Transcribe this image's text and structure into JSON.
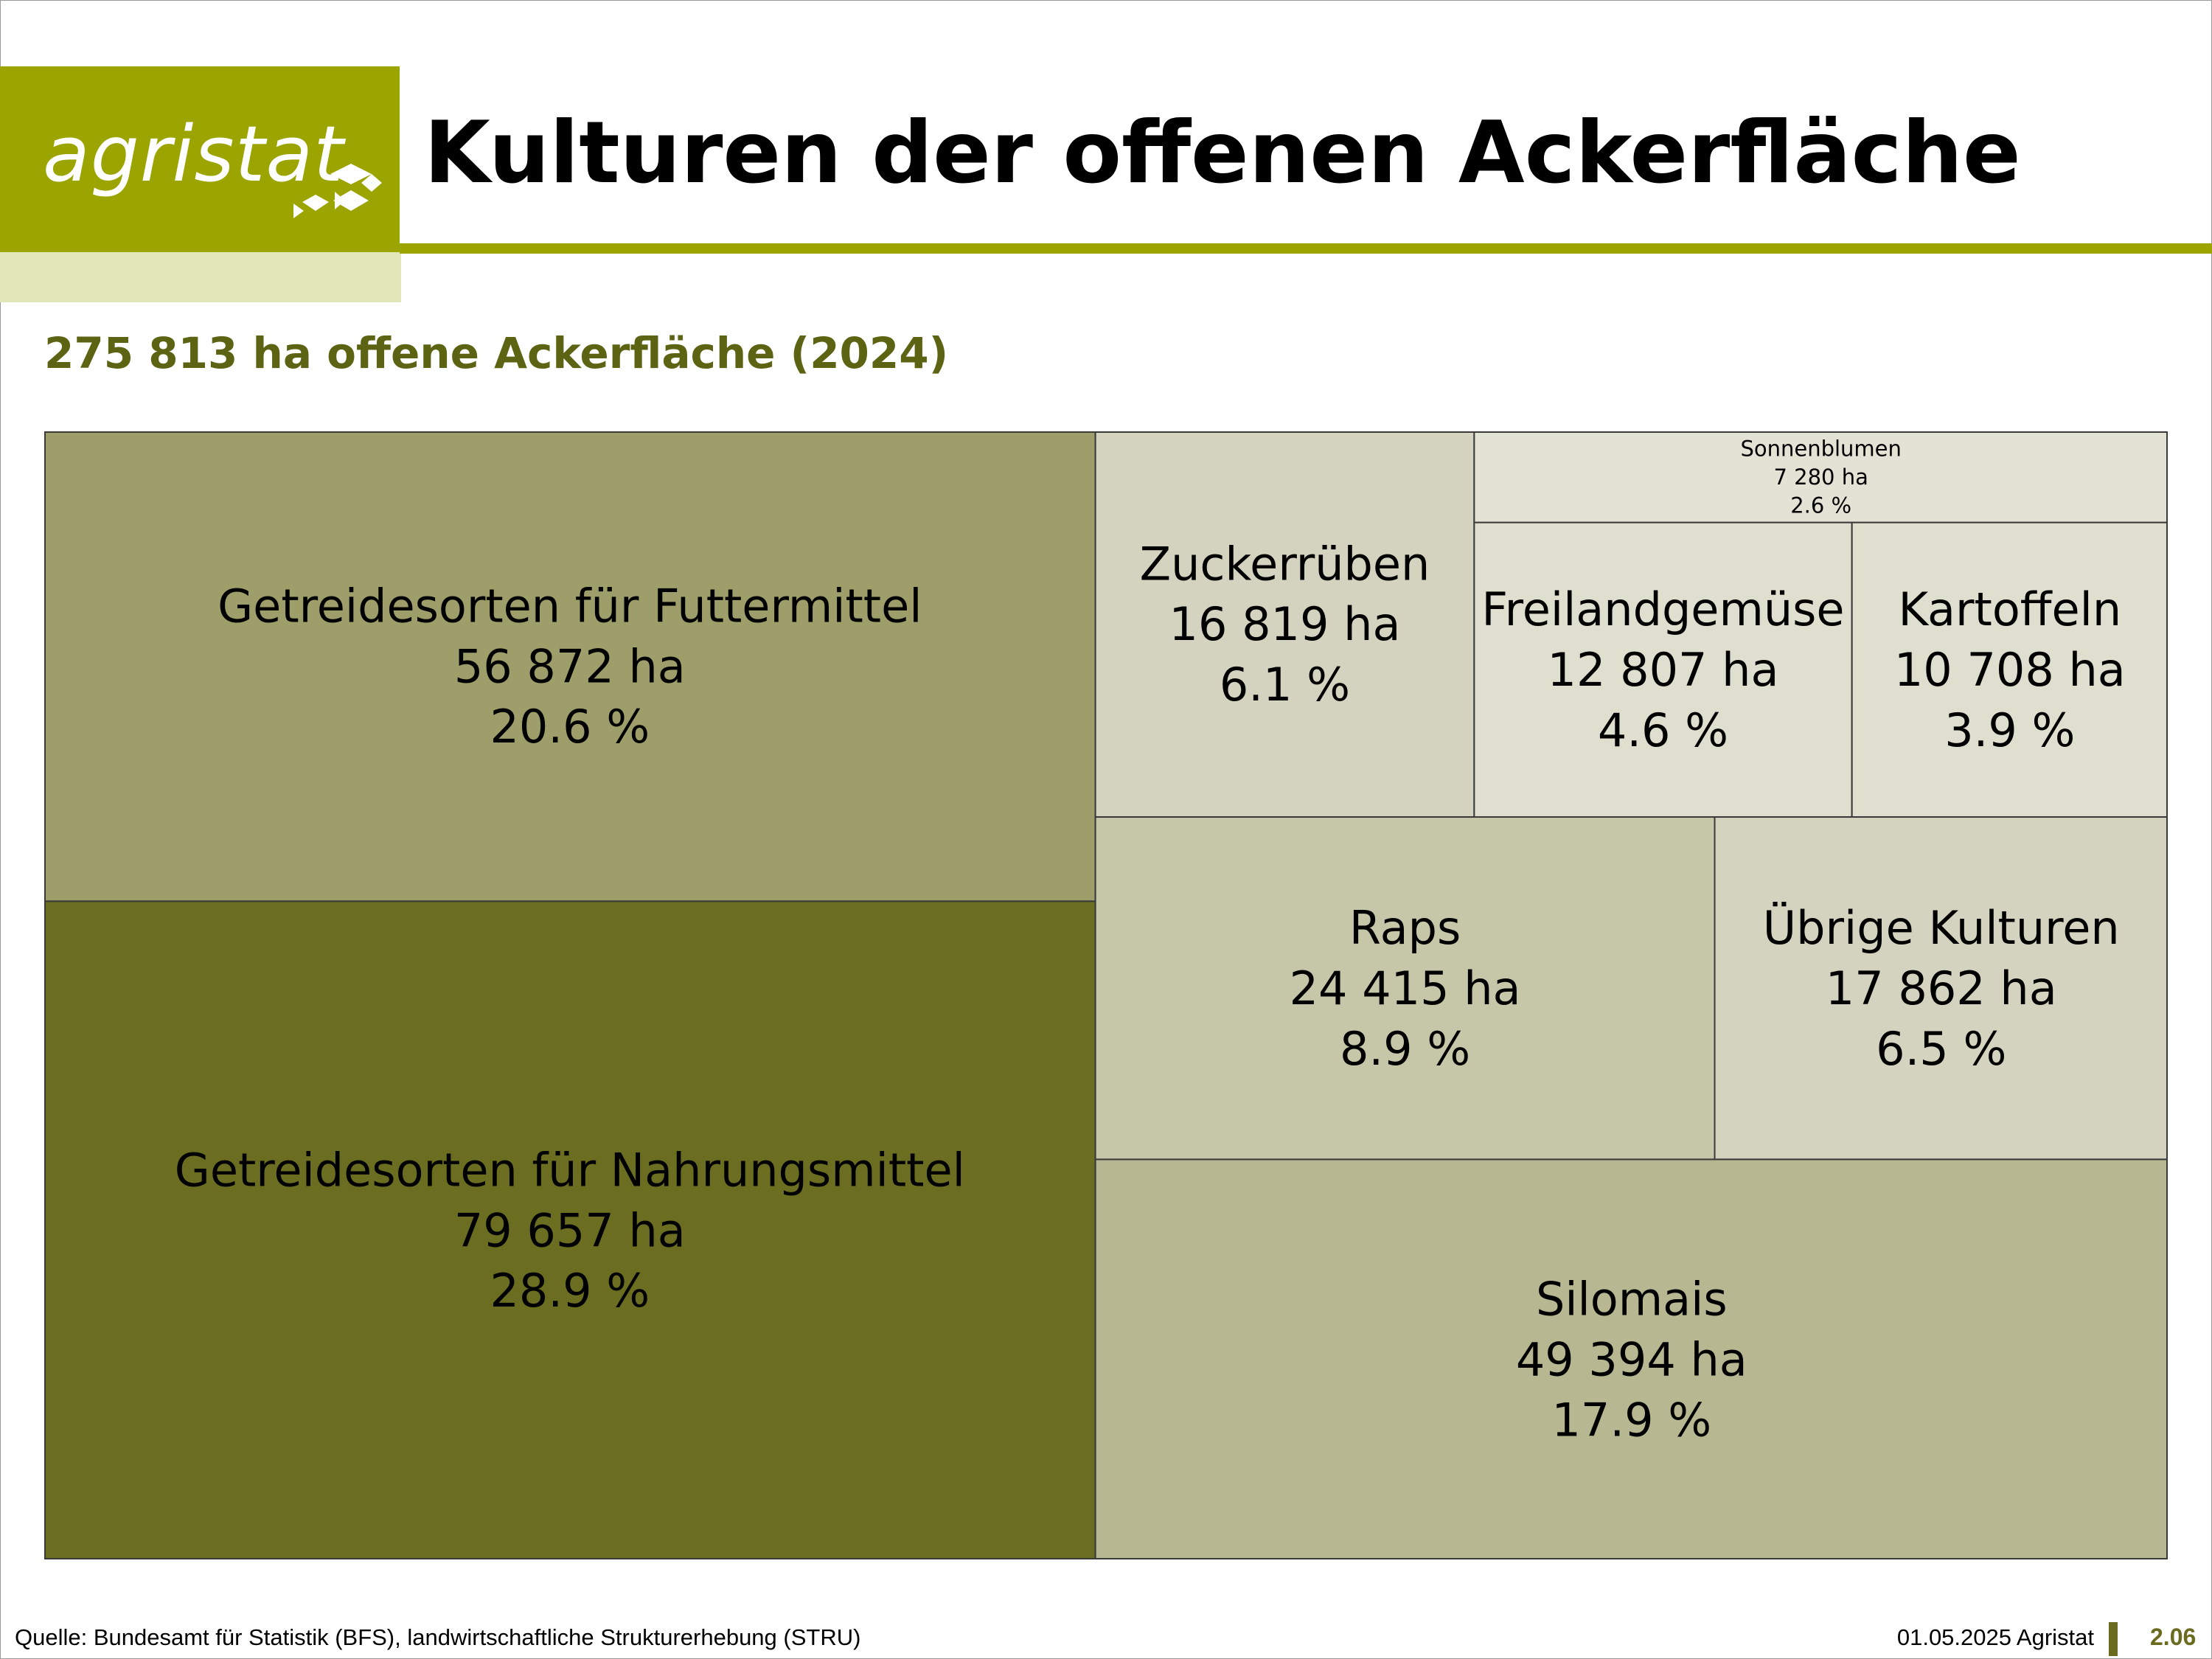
{
  "header": {
    "logo_text": "agristat",
    "title": "Kulturen der offenen Ackerfläche",
    "subtitle": "275 813 ha offene Ackerfläche (2024)"
  },
  "colors": {
    "brand": "#9ca400",
    "brand_pale": "#e3e6b8",
    "subtitle": "#5c6414",
    "page_number": "#6b6b1f"
  },
  "chart_data": {
    "type": "treemap",
    "unit": "ha",
    "total": 275813,
    "items": [
      {
        "label": "Getreidesorten für Nahrungsmittel",
        "area_text": "79 657 ha",
        "pct_text": "28.9 %",
        "value": 79657,
        "color": "#6b6d20"
      },
      {
        "label": "Getreidesorten für Futtermittel",
        "area_text": "56 872 ha",
        "pct_text": "20.6 %",
        "value": 56872,
        "color": "#9e9e6a"
      },
      {
        "label": "Silomais",
        "area_text": "49 394 ha",
        "pct_text": "17.9 %",
        "value": 49394,
        "color": "#b7b791"
      },
      {
        "label": "Raps",
        "area_text": "24 415 ha",
        "pct_text": "8.9 %",
        "value": 24415,
        "color": "#c6c6a9"
      },
      {
        "label": "Übrige Kulturen",
        "area_text": "17 862 ha",
        "pct_text": "6.5 %",
        "value": 17862,
        "color": "#d3d3c0"
      },
      {
        "label": "Zuckerrüben",
        "area_text": "16 819 ha",
        "pct_text": "6.1 %",
        "value": 16819,
        "color": "#d3d3c0"
      },
      {
        "label": "Freilandgemüse",
        "area_text": "12 807 ha",
        "pct_text": "4.6 %",
        "value": 12807,
        "color": "#dfdfd0"
      },
      {
        "label": "Kartoffeln",
        "area_text": "10 708 ha",
        "pct_text": "3.9 %",
        "value": 10708,
        "color": "#dfdfd0"
      },
      {
        "label": "Sonnenblumen",
        "area_text": "7 280 ha",
        "pct_text": "2.6 %",
        "value": 7280,
        "color": "#e3e3d5"
      }
    ]
  },
  "footer": {
    "source": "Quelle: Bundesamt für Statistik (BFS), landwirtschaftliche Strukturerhebung (STRU)",
    "date_org": "01.05.2025 Agristat",
    "page": "2.06"
  }
}
